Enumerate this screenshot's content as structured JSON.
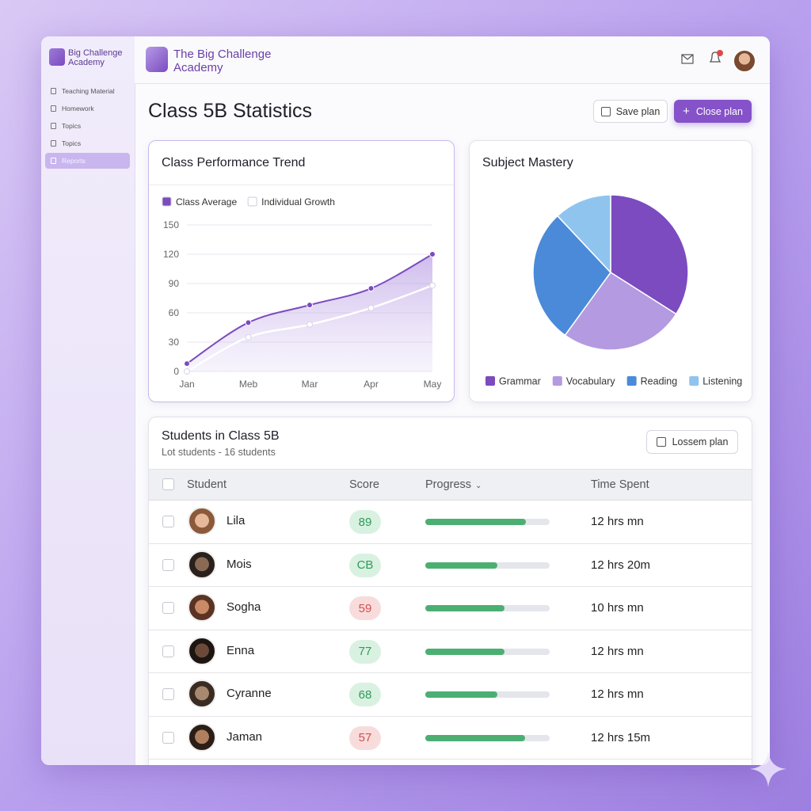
{
  "sidebar": {
    "brand": "Big Challenge Academy",
    "nav": [
      "Teaching Material",
      "Homework",
      "Topics",
      "Topics",
      "Reports"
    ]
  },
  "header": {
    "title": "The Big Challenge Academy"
  },
  "page": {
    "title": "Class 5B Statistics",
    "buttons": [
      "Save plan",
      "Close plan"
    ]
  },
  "chart_data": [
    {
      "type": "line",
      "title": "Class Performance Trend",
      "categories": [
        "Jan",
        "Meb",
        "Mar",
        "Apr",
        "May"
      ],
      "series": [
        {
          "name": "Class Average",
          "color": "#7b4bbf",
          "values": [
            8,
            50,
            68,
            85,
            120
          ]
        },
        {
          "name": "Individual Growth",
          "color": "#ffffff",
          "values": [
            0,
            35,
            48,
            65,
            88
          ]
        }
      ],
      "ylim": [
        0,
        150
      ],
      "yticks": [
        0,
        30,
        60,
        90,
        120,
        150
      ],
      "grid": true,
      "legend": "top-left"
    },
    {
      "type": "pie",
      "title": "Subject Mastery",
      "categories": [
        "Grammar",
        "Vocabulary",
        "Reading",
        "Listening"
      ],
      "values": [
        34,
        26,
        28,
        12
      ],
      "colors": [
        "#7b4bbf",
        "#b49ae0",
        "#4a8ad8",
        "#8fc4ef"
      ],
      "legend": "bottom"
    }
  ],
  "table": {
    "title": "Students in Class 5B",
    "subtitle": "Lot students - 16 students",
    "button": "Lossem plan",
    "columns": [
      "Student",
      "Score",
      "Progress",
      "Time Spent"
    ],
    "rows": [
      {
        "name": "Lila",
        "score": "89",
        "score_color": "#2f9a5a",
        "progress": 81,
        "time": "12 hrs mn"
      },
      {
        "name": "Mois",
        "score": "CB",
        "score_color": "#2f9a5a",
        "progress": 58,
        "time": "12 hrs 20m"
      },
      {
        "name": "Sogha",
        "score": "59",
        "score_color": "#d0514f",
        "progress": 64,
        "time": "10 hrs mn"
      },
      {
        "name": "Enna",
        "score": "77",
        "score_color": "#2f9a5a",
        "progress": 64,
        "time": "12 hrs mn"
      },
      {
        "name": "Cyranne",
        "score": "68",
        "score_color": "#2f9a5a",
        "progress": 58,
        "time": "12 hrs mn"
      },
      {
        "name": "Jaman",
        "score": "57",
        "score_color": "#d0514f",
        "progress": 80,
        "time": "12 hrs 15m"
      }
    ]
  }
}
